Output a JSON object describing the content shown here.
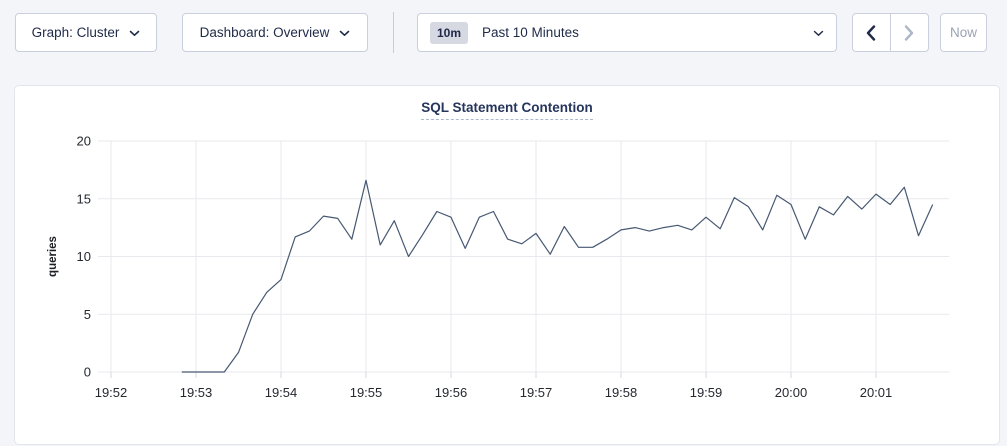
{
  "toolbar": {
    "graph_dropdown": {
      "label": "Graph: Cluster"
    },
    "dashboard_dropdown": {
      "label": "Dashboard: Overview"
    },
    "time_picker": {
      "badge": "10m",
      "label": "Past 10 Minutes"
    },
    "now_button": {
      "label": "Now"
    }
  },
  "chart": {
    "title": "SQL Statement Contention"
  },
  "chart_data": {
    "type": "line",
    "title": "SQL Statement Contention",
    "xlabel": "",
    "ylabel": "queries",
    "ylim": [
      0,
      20
    ],
    "yticks": [
      "0",
      "5",
      "10",
      "15",
      "20"
    ],
    "xticks": [
      "19:52",
      "19:53",
      "19:54",
      "19:55",
      "19:56",
      "19:57",
      "19:58",
      "19:59",
      "20:00",
      "20:01"
    ],
    "grid": true,
    "legend": "none",
    "line_color": "#475872",
    "series": [
      {
        "name": "queries",
        "start_time": "19:52:50",
        "interval_seconds": 10,
        "values": [
          0,
          0,
          0,
          0,
          1.7,
          5.0,
          6.9,
          8.0,
          11.7,
          12.2,
          13.5,
          13.3,
          11.5,
          16.6,
          11.0,
          13.1,
          10.0,
          11.9,
          13.9,
          13.4,
          10.7,
          13.4,
          13.9,
          11.5,
          11.1,
          12.0,
          10.2,
          12.6,
          10.8,
          10.8,
          11.5,
          12.3,
          12.5,
          12.2,
          12.5,
          12.7,
          12.3,
          13.4,
          12.4,
          15.1,
          14.3,
          12.3,
          15.3,
          14.5,
          11.5,
          14.3,
          13.6,
          15.2,
          14.1,
          15.4,
          14.5,
          16.0,
          11.8,
          14.5
        ]
      }
    ]
  },
  "colors": {
    "page_bg": "#f4f5f9",
    "card_bg": "#ffffff",
    "line": "#475872",
    "grid": "#e8e9ed",
    "tick_text": "#24282f",
    "title_text": "#26355c",
    "control_text": "#1f2a48",
    "disabled_text": "#aeb7c6"
  }
}
